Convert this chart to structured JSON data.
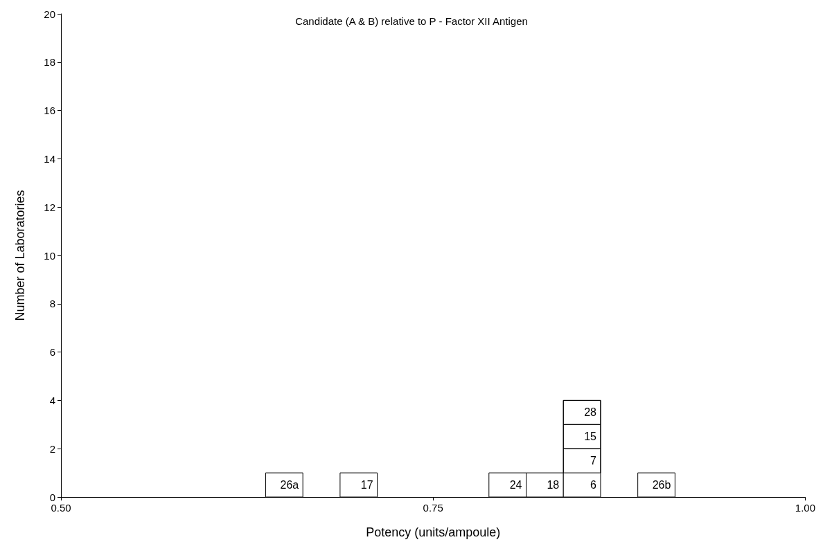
{
  "chart_data": {
    "type": "histogram",
    "title": "Candidate (A & B) relative to P - Factor XII Antigen",
    "xlabel": "Potency (units/ampoule)",
    "ylabel": "Number of Laboratories",
    "bins": [
      0.6375,
      0.6625,
      0.6875,
      0.7125,
      0.7375,
      0.7625,
      0.7875,
      0.8125,
      0.8375,
      0.8625,
      0.8875,
      0.9125
    ],
    "values": [
      1,
      0,
      1,
      0,
      0,
      0,
      1,
      1,
      4,
      0,
      1
    ],
    "color": "#ffffff",
    "xlim": [
      0.5,
      1.0
    ],
    "xticks": [
      {
        "value": 0.5,
        "label": "0.50"
      },
      {
        "value": 0.75,
        "label": "0.75"
      },
      {
        "value": 1.0,
        "label": "1.00"
      }
    ],
    "ylim": [
      0,
      20
    ],
    "yticks": [
      0,
      2,
      4,
      6,
      8,
      10,
      12,
      14,
      16,
      18,
      20
    ],
    "grid": false,
    "annotations": [
      "26a",
      "17",
      "24",
      "18",
      "6",
      "7",
      "15",
      "28",
      "26b"
    ]
  }
}
